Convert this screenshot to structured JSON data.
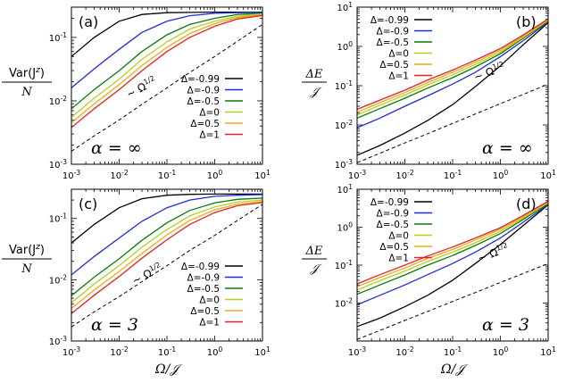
{
  "palette": {
    "-0.99": "#000000",
    "-0.9": "#1f2bd9",
    "-0.5": "#0a7a0a",
    "0": "#b5cf20",
    "0.5": "#f0a818",
    "1": "#e02424"
  },
  "axis_labels": {
    "x": "Ω/𝒥",
    "var_num": "Var(J",
    "var_sup": "z",
    "var_close": ")",
    "var_den": "N",
    "de_num": "ΔE",
    "de_den": "𝒥"
  },
  "chart_data": [
    {
      "panel": "(a)",
      "type": "line",
      "scale": "log-log",
      "xlim": [
        0.001,
        10
      ],
      "ylim": [
        0.001,
        0.3
      ],
      "xticks": [
        "10-3",
        "10-2",
        "10-1",
        "100",
        "101"
      ],
      "yticks": [
        "10-3",
        "10-2",
        "10-1"
      ],
      "ylabel": "Var(J^z)/N",
      "xlabel": "",
      "annotation": "α = ∞",
      "reference_label": "~ Ω1/2",
      "legend_position": "center-right",
      "x": [
        0.001,
        0.003,
        0.01,
        0.03,
        0.1,
        0.3,
        1,
        3,
        10
      ],
      "series": [
        {
          "name": "Δ=-0.99",
          "values": [
            0.05,
            0.1,
            0.18,
            0.23,
            0.245,
            0.248,
            0.25,
            0.25,
            0.25
          ]
        },
        {
          "name": "Δ=-0.9",
          "values": [
            0.016,
            0.032,
            0.065,
            0.12,
            0.18,
            0.22,
            0.24,
            0.245,
            0.248
          ]
        },
        {
          "name": "Δ=-0.5",
          "values": [
            0.0075,
            0.015,
            0.03,
            0.06,
            0.11,
            0.16,
            0.2,
            0.23,
            0.24
          ]
        },
        {
          "name": "Δ=0",
          "values": [
            0.0055,
            0.011,
            0.022,
            0.045,
            0.085,
            0.135,
            0.18,
            0.215,
            0.235
          ]
        },
        {
          "name": "Δ=0.5",
          "values": [
            0.0045,
            0.009,
            0.018,
            0.036,
            0.07,
            0.115,
            0.165,
            0.205,
            0.228
          ]
        },
        {
          "name": "Δ=1",
          "values": [
            0.0038,
            0.0075,
            0.015,
            0.03,
            0.06,
            0.1,
            0.15,
            0.195,
            0.222
          ]
        },
        {
          "name": "~ Ω1/2",
          "style": "dashed",
          "values": [
            0.0016,
            0.0028,
            0.005,
            0.0088,
            0.016,
            0.028,
            0.05,
            0.087,
            0.16
          ]
        }
      ]
    },
    {
      "panel": "(b)",
      "type": "line",
      "scale": "log-log",
      "xlim": [
        0.001,
        10
      ],
      "ylim": [
        0.001,
        10
      ],
      "xticks": [
        "10-3",
        "10-2",
        "10-1",
        "100",
        "101"
      ],
      "yticks": [
        "10-3",
        "10-2",
        "10-1",
        "100",
        "101"
      ],
      "ylabel": "ΔE/𝒥",
      "xlabel": "",
      "annotation": "α = ∞",
      "reference_label": "~ Ω1/2",
      "legend_position": "top-left",
      "x": [
        0.001,
        0.003,
        0.01,
        0.03,
        0.1,
        0.3,
        1,
        3,
        10
      ],
      "series": [
        {
          "name": "Δ=-0.99",
          "values": [
            0.0017,
            0.003,
            0.0062,
            0.013,
            0.033,
            0.095,
            0.32,
            1.1,
            4
          ]
        },
        {
          "name": "Δ=-0.9",
          "values": [
            0.0085,
            0.015,
            0.03,
            0.055,
            0.11,
            0.22,
            0.55,
            1.4,
            4.2
          ]
        },
        {
          "name": "Δ=-0.5",
          "values": [
            0.015,
            0.026,
            0.048,
            0.087,
            0.16,
            0.3,
            0.65,
            1.6,
            4.4
          ]
        },
        {
          "name": "Δ=0",
          "values": [
            0.018,
            0.032,
            0.058,
            0.105,
            0.19,
            0.35,
            0.72,
            1.7,
            4.6
          ]
        },
        {
          "name": "Δ=0.5",
          "values": [
            0.021,
            0.037,
            0.067,
            0.12,
            0.22,
            0.4,
            0.8,
            1.8,
            4.8
          ]
        },
        {
          "name": "Δ=1",
          "values": [
            0.025,
            0.043,
            0.077,
            0.14,
            0.25,
            0.45,
            0.88,
            1.95,
            5
          ]
        },
        {
          "name": "~ Ω1/2",
          "style": "dashed",
          "values": [
            0.0011,
            0.0019,
            0.0035,
            0.006,
            0.011,
            0.019,
            0.035,
            0.06,
            0.11
          ]
        }
      ]
    },
    {
      "panel": "(c)",
      "type": "line",
      "scale": "log-log",
      "xlim": [
        0.001,
        10
      ],
      "ylim": [
        0.001,
        0.3
      ],
      "xticks": [
        "10-3",
        "10-2",
        "10-1",
        "100",
        "101"
      ],
      "yticks": [
        "10-3",
        "10-2",
        "10-1"
      ],
      "ylabel": "Var(J^z)/N",
      "xlabel": "Ω/𝒥",
      "annotation": "α = 3",
      "reference_label": "~ Ω1/2",
      "legend_position": "bottom-right",
      "x": [
        0.001,
        0.003,
        0.01,
        0.03,
        0.1,
        0.3,
        1,
        3,
        10
      ],
      "series": [
        {
          "name": "Δ=-0.99",
          "values": [
            0.04,
            0.08,
            0.15,
            0.21,
            0.24,
            0.248,
            0.25,
            0.25,
            0.25
          ]
        },
        {
          "name": "Δ=-0.9",
          "values": [
            0.012,
            0.024,
            0.048,
            0.09,
            0.15,
            0.2,
            0.23,
            0.24,
            0.245
          ]
        },
        {
          "name": "Δ=-0.5",
          "values": [
            0.0055,
            0.011,
            0.022,
            0.044,
            0.085,
            0.135,
            0.18,
            0.205,
            0.215
          ]
        },
        {
          "name": "Δ=0",
          "values": [
            0.0042,
            0.0085,
            0.017,
            0.034,
            0.066,
            0.11,
            0.155,
            0.185,
            0.2
          ]
        },
        {
          "name": "Δ=0.5",
          "values": [
            0.0034,
            0.0068,
            0.0137,
            0.027,
            0.054,
            0.093,
            0.138,
            0.172,
            0.19
          ]
        },
        {
          "name": "Δ=1",
          "values": [
            0.0028,
            0.0056,
            0.0113,
            0.0225,
            0.045,
            0.08,
            0.125,
            0.162,
            0.182
          ]
        },
        {
          "name": "~ Ω1/2",
          "style": "dashed",
          "values": [
            0.0017,
            0.003,
            0.0053,
            0.0093,
            0.017,
            0.03,
            0.053,
            0.093,
            0.17
          ]
        }
      ]
    },
    {
      "panel": "(d)",
      "type": "line",
      "scale": "log-log",
      "xlim": [
        0.001,
        10
      ],
      "ylim": [
        0.001,
        10
      ],
      "xticks": [
        "10-3",
        "10-2",
        "10-1",
        "100",
        "101"
      ],
      "yticks": [
        "10-2",
        "10-1",
        "100",
        "101"
      ],
      "ylabel": "ΔE/𝒥",
      "xlabel": "Ω/𝒥",
      "annotation": "α = 3",
      "reference_label": "~ Ω1/2",
      "legend_position": "top-left",
      "x": [
        0.001,
        0.003,
        0.01,
        0.03,
        0.1,
        0.3,
        1,
        3,
        10
      ],
      "series": [
        {
          "name": "Δ=-0.99",
          "values": [
            0.0024,
            0.004,
            0.008,
            0.016,
            0.04,
            0.11,
            0.35,
            1.1,
            3.9
          ]
        },
        {
          "name": "Δ=-0.9",
          "values": [
            0.009,
            0.016,
            0.03,
            0.056,
            0.11,
            0.22,
            0.52,
            1.35,
            4
          ]
        },
        {
          "name": "Δ=-0.5",
          "values": [
            0.017,
            0.03,
            0.055,
            0.1,
            0.18,
            0.33,
            0.68,
            1.6,
            4.2
          ]
        },
        {
          "name": "Δ=0",
          "values": [
            0.022,
            0.039,
            0.07,
            0.125,
            0.22,
            0.39,
            0.78,
            1.75,
            4.4
          ]
        },
        {
          "name": "Δ=0.5",
          "values": [
            0.027,
            0.047,
            0.084,
            0.15,
            0.26,
            0.46,
            0.88,
            1.9,
            4.6
          ]
        },
        {
          "name": "Δ=1",
          "values": [
            0.032,
            0.056,
            0.1,
            0.175,
            0.3,
            0.52,
            0.97,
            2.05,
            4.8
          ]
        },
        {
          "name": "~ Ω1/2",
          "style": "dashed",
          "values": [
            0.0011,
            0.0019,
            0.0035,
            0.006,
            0.011,
            0.019,
            0.035,
            0.06,
            0.11
          ]
        }
      ]
    }
  ]
}
